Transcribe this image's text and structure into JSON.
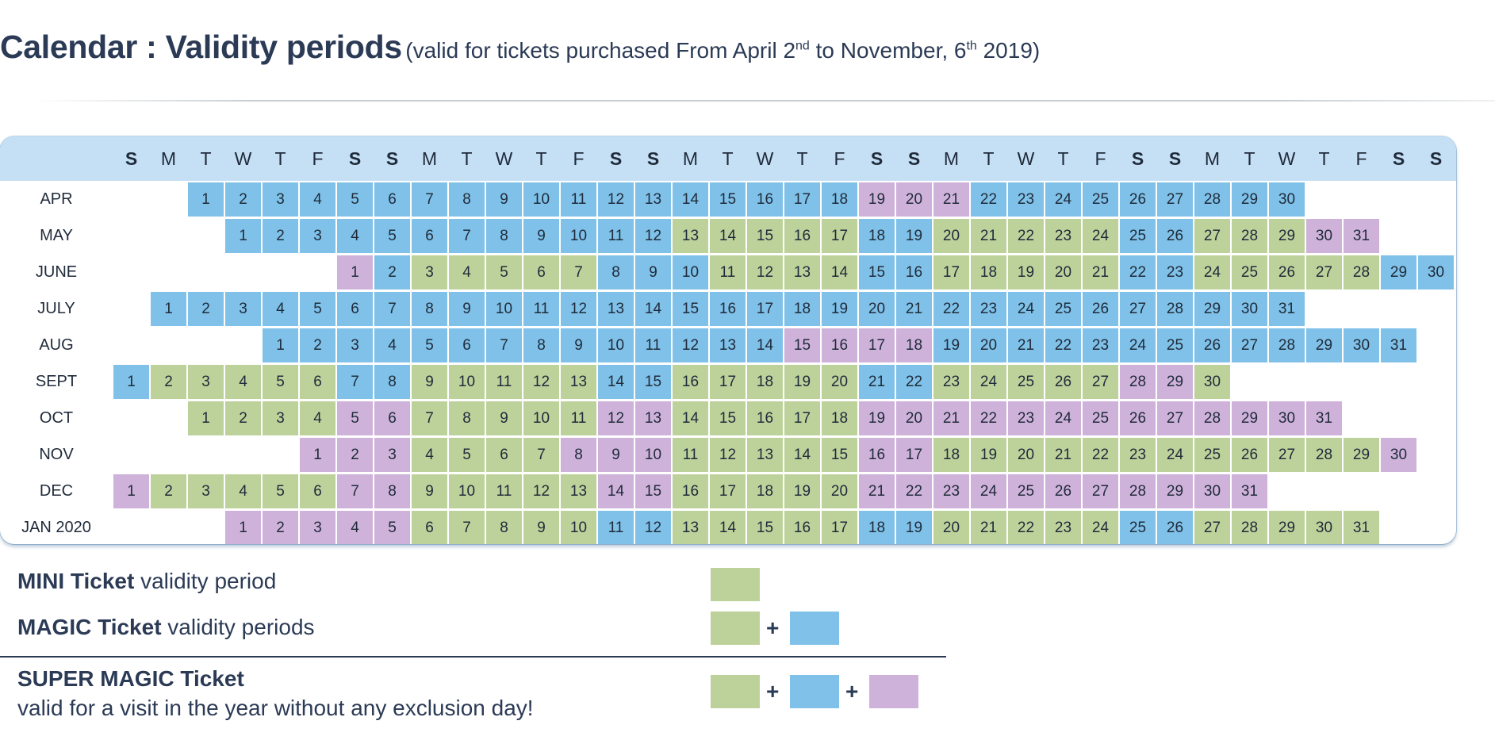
{
  "title": {
    "main": "Calendar : Validity periods",
    "sub_before": "(valid for tickets purchased From April 2",
    "sup1": "nd",
    "sub_mid": " to November, 6",
    "sup2": "th",
    "sub_after": " 2019)"
  },
  "weekday_header": [
    "S",
    "M",
    "T",
    "W",
    "T",
    "F",
    "S",
    "S",
    "M",
    "T",
    "W",
    "T",
    "F",
    "S",
    "S",
    "M",
    "T",
    "W",
    "T",
    "F",
    "S",
    "S",
    "M",
    "T",
    "W",
    "T",
    "F",
    "S",
    "S",
    "M",
    "T",
    "W",
    "T",
    "F",
    "S",
    "S"
  ],
  "legend_code": {
    "G": "green",
    "B": "blue",
    "P": "purple"
  },
  "colors": {
    "green": "#bdd29b",
    "blue": "#7fc1e8",
    "purple": "#cfb2da",
    "header": "#c5e0f5",
    "text": "#2b3a55"
  },
  "months": [
    {
      "label": "APR",
      "start_col": 2,
      "days": 30,
      "codes": "BBBBBBBBBBBBBBBBBBPPPBBBBBBBBB"
    },
    {
      "label": "MAY",
      "start_col": 3,
      "days": 31,
      "codes": "BBBBBBBBBBBBGGGGGBBGGGGGBBGGGPP"
    },
    {
      "label": "JUNE",
      "start_col": 6,
      "days": 30,
      "codes": "PBGGGGGBBBGGGGBBGGGGGBBGGGGGBB"
    },
    {
      "label": "JULY",
      "start_col": 1,
      "days": 31,
      "codes": "BBBBBBBBBBBBBBBBBBBBBBBBBBBBBBB"
    },
    {
      "label": "AUG",
      "start_col": 4,
      "days": 31,
      "codes": "BBBBBBBBBBBBBBPPPPBBBBBBBBBBBBB"
    },
    {
      "label": "SEPT",
      "start_col": 0,
      "days": 30,
      "codes": "BGGGGGBBGGGGGBBGGGGGBBGGGGGPPG"
    },
    {
      "label": "OCT",
      "start_col": 2,
      "days": 31,
      "codes": "GGGGPPGGGGGPPGGGGGPPPPPPPPPPPPP"
    },
    {
      "label": "NOV",
      "start_col": 5,
      "days": 30,
      "codes": "PPPGGGGPPPGGGGGPPGGGGGGGGGGGGP"
    },
    {
      "label": "DEC",
      "start_col": 0,
      "days": 31,
      "codes": "PGGGGGPPGGGGGPPGGGGGPPPPPPPPPPP"
    },
    {
      "label": "JAN 2020",
      "start_col": 3,
      "days": 31,
      "codes": "PPPPPGGGGGBBGGGGGBBGGGGGBBGGGGG"
    }
  ],
  "legend": {
    "mini": {
      "bold": "MINI Ticket",
      "rest": " validity period",
      "swatches": [
        "green"
      ]
    },
    "magic": {
      "bold": "MAGIC Ticket",
      "rest": " validity periods",
      "swatches": [
        "green",
        "blue"
      ]
    },
    "super": {
      "bold": "SUPER MAGIC Ticket",
      "line2": "valid for a visit in the year without any exclusion day!",
      "swatches": [
        "green",
        "blue",
        "purple"
      ]
    },
    "plus": "+"
  }
}
